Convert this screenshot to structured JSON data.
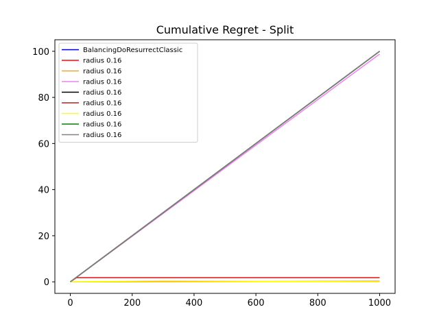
{
  "chart_data": {
    "type": "line",
    "title": "Cumulative Regret - Split",
    "xlabel": "",
    "ylabel": "",
    "xlim": [
      -50,
      1050
    ],
    "ylim": [
      -5,
      105
    ],
    "x_ticks": [
      0,
      200,
      400,
      600,
      800,
      1000
    ],
    "y_ticks": [
      0,
      20,
      40,
      60,
      80,
      100
    ],
    "grid": false,
    "legend_position": "top-left",
    "series": [
      {
        "name": "BalancingDoResurrectClassic",
        "color": "#0000cc",
        "x": [
          0,
          1000
        ],
        "y": [
          0,
          100
        ]
      },
      {
        "name": "radius 0.16",
        "color": "#ff0000",
        "x": [
          0,
          20,
          1000
        ],
        "y": [
          0,
          1.8,
          1.8
        ]
      },
      {
        "name": "radius 0.16",
        "color": "#ffa500",
        "x": [
          0,
          1000
        ],
        "y": [
          0,
          0.3
        ]
      },
      {
        "name": "radius 0.16",
        "color": "#ee82ee",
        "x": [
          0,
          1000
        ],
        "y": [
          0,
          98.8
        ]
      },
      {
        "name": "radius 0.16",
        "color": "#000000",
        "x": [
          0,
          1000
        ],
        "y": [
          0,
          100
        ]
      },
      {
        "name": "radius 0.16",
        "color": "#b22222",
        "x": [
          0,
          1000
        ],
        "y": [
          0,
          100
        ]
      },
      {
        "name": "radius 0.16",
        "color": "#ffff00",
        "x": [
          0,
          300,
          1000
        ],
        "y": [
          0,
          0.5,
          0
        ]
      },
      {
        "name": "radius 0.16",
        "color": "#008000",
        "x": [
          0,
          1000
        ],
        "y": [
          0,
          100
        ]
      },
      {
        "name": "radius 0.16",
        "color": "#808080",
        "x": [
          0,
          1000
        ],
        "y": [
          0,
          100
        ]
      }
    ]
  }
}
